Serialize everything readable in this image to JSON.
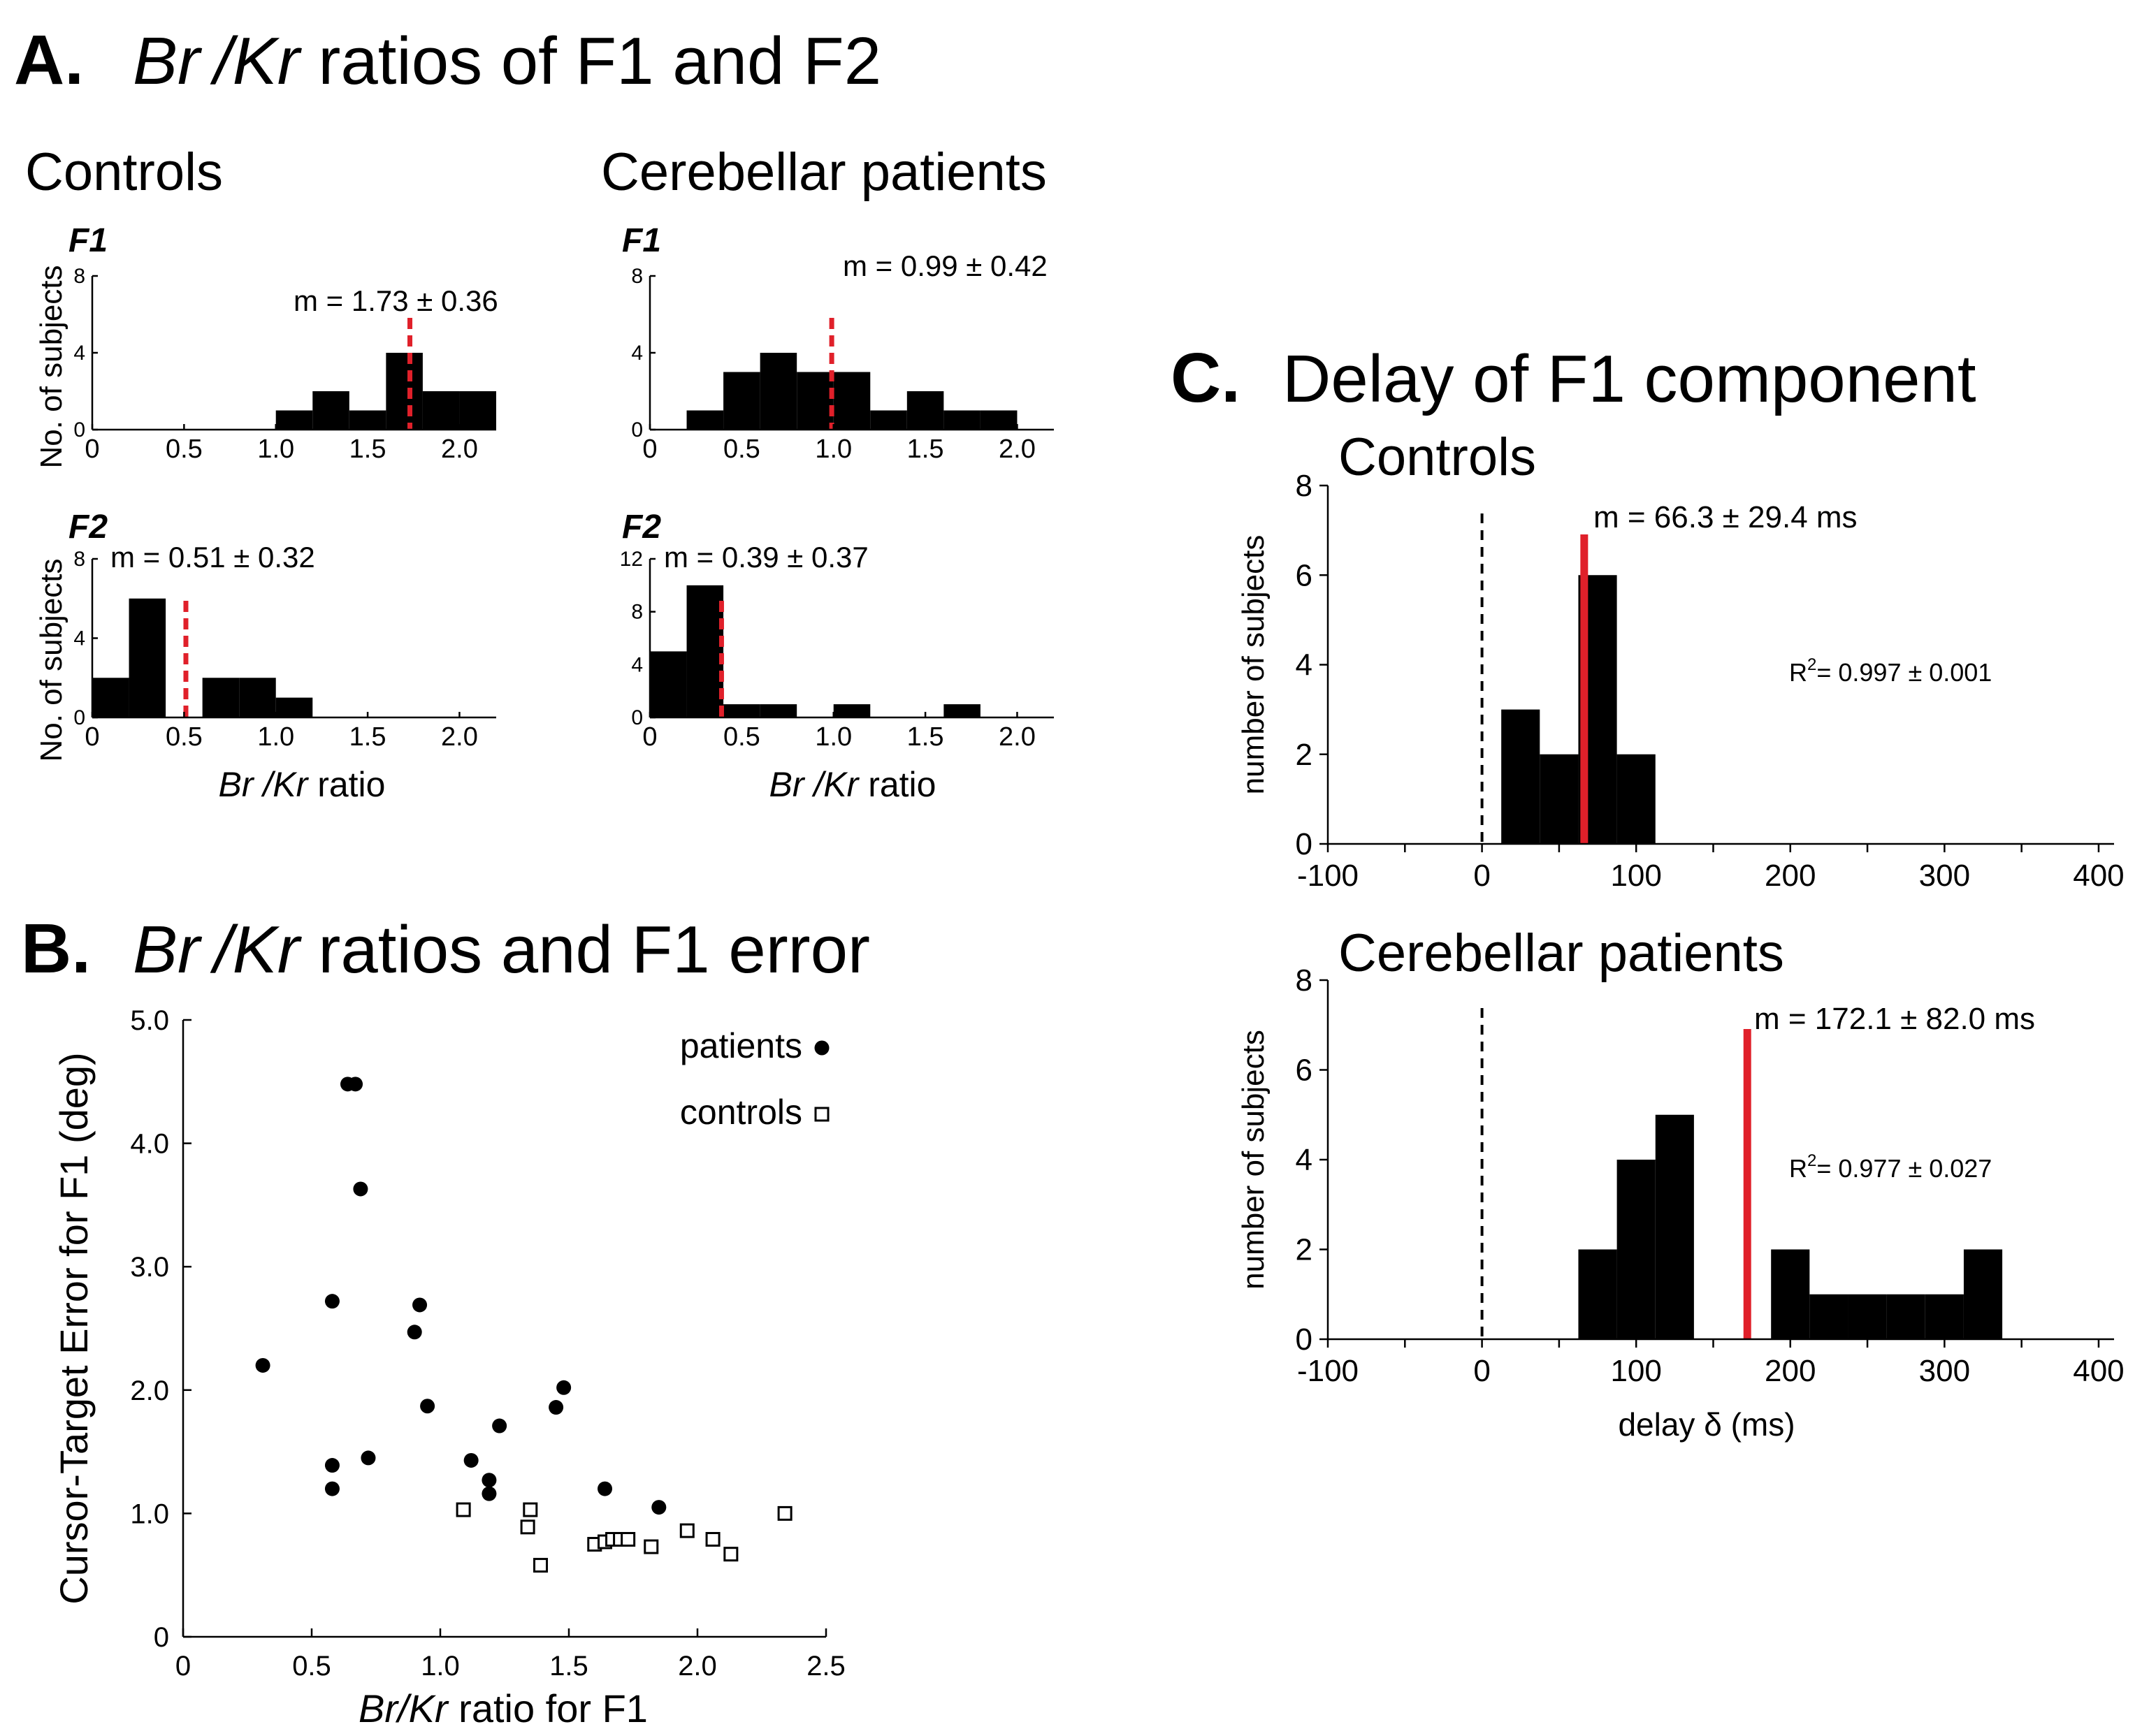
{
  "panel_a": {
    "letter": "A.",
    "title_italic_1": "Br",
    "title_italic_2": "/Kr",
    "title_rest": " ratios of F1 and F2",
    "group_controls": "Controls",
    "group_patients": "Cerebellar patients",
    "row_f1": "F1",
    "row_f2": "F2",
    "ylabel": "No. of subjects",
    "xlabel_italic_1": "Br",
    "xlabel_italic_2": " /Kr",
    "xlabel_rest": " ratio"
  },
  "panel_b": {
    "letter": "B.",
    "title_italic_1": "Br",
    "title_italic_2": "/Kr",
    "title_rest": " ratios and F1 error"
  },
  "panel_c": {
    "letter": "C.",
    "title": "Delay of F1 component"
  },
  "colors": {
    "bar": "#000000",
    "mean_line": "#e0202a",
    "zero_line": "#000000"
  },
  "chart_data": [
    {
      "id": "a_controls_f1",
      "type": "bar",
      "title": "F1",
      "bin_edges": [
        0,
        0.2,
        0.4,
        0.6,
        0.8,
        1.0,
        1.2,
        1.4,
        1.6,
        1.8,
        2.0,
        2.2
      ],
      "values": [
        0,
        0,
        0,
        0,
        0,
        1,
        2,
        1,
        4,
        2,
        2
      ],
      "xlim": [
        0,
        2.2
      ],
      "ylim": [
        0,
        8
      ],
      "xticks": [
        "0",
        "0.5",
        "1.0",
        "1.5",
        "2.0"
      ],
      "xtick_values": [
        0,
        0.5,
        1.0,
        1.5,
        2.0
      ],
      "yticks": [
        "0",
        "4",
        "8"
      ],
      "ytick_values": [
        0,
        4,
        8
      ],
      "mean": 1.73,
      "mean_label": "m = 1.73 ± 0.36",
      "mean_style": "dashed"
    },
    {
      "id": "a_patients_f1",
      "type": "bar",
      "title": "F1",
      "bin_edges": [
        0.2,
        0.4,
        0.6,
        0.8,
        1.0,
        1.2,
        1.4,
        1.6,
        1.8,
        2.0
      ],
      "values": [
        1,
        3,
        4,
        3,
        3,
        1,
        2,
        1,
        1
      ],
      "xlim": [
        0,
        2.2
      ],
      "ylim": [
        0,
        8
      ],
      "xticks": [
        "0",
        "0.5",
        "1.0",
        "1.5",
        "2.0"
      ],
      "xtick_values": [
        0,
        0.5,
        1.0,
        1.5,
        2.0
      ],
      "yticks": [
        "0",
        "4",
        "8"
      ],
      "ytick_values": [
        0,
        4,
        8
      ],
      "mean": 0.99,
      "mean_label": "m = 0.99 ± 0.42",
      "mean_style": "dashed"
    },
    {
      "id": "a_controls_f2",
      "type": "bar",
      "title": "F2",
      "bin_edges": [
        0,
        0.2,
        0.4,
        0.6,
        0.8,
        1.0,
        1.2
      ],
      "values": [
        2,
        6,
        0,
        2,
        2,
        1
      ],
      "xlim": [
        0,
        2.2
      ],
      "ylim": [
        0,
        8
      ],
      "xticks": [
        "0",
        "0.5",
        "1.0",
        "1.5",
        "2.0"
      ],
      "xtick_values": [
        0,
        0.5,
        1.0,
        1.5,
        2.0
      ],
      "yticks": [
        "0",
        "4",
        "8"
      ],
      "ytick_values": [
        0,
        4,
        8
      ],
      "mean": 0.51,
      "mean_label": "m = 0.51 ± 0.32",
      "mean_style": "dashed"
    },
    {
      "id": "a_patients_f2",
      "type": "bar",
      "title": "F2",
      "bin_edges": [
        0,
        0.2,
        0.4,
        0.6,
        0.8,
        1.0,
        1.2,
        1.4,
        1.6,
        1.8
      ],
      "values": [
        5,
        10,
        1,
        1,
        0,
        1,
        0,
        0,
        1
      ],
      "xlim": [
        0,
        2.2
      ],
      "ylim": [
        0,
        12
      ],
      "xticks": [
        "0",
        "0.5",
        "1.0",
        "1.5",
        "2.0"
      ],
      "xtick_values": [
        0,
        0.5,
        1.0,
        1.5,
        2.0
      ],
      "yticks": [
        "0",
        "4",
        "8",
        "12"
      ],
      "ytick_values": [
        0,
        4,
        8,
        12
      ],
      "mean": 0.39,
      "mean_label": "m = 0.39 ± 0.37",
      "mean_style": "dashed"
    },
    {
      "id": "b_scatter",
      "type": "scatter",
      "xlabel_italic": "Br/Kr",
      "xlabel_rest": " ratio for F1",
      "ylabel": "Cursor-Target Error for F1 (deg)",
      "xlim": [
        0,
        2.5
      ],
      "ylim": [
        0,
        5.0
      ],
      "xticks": [
        "0",
        "0.5",
        "1.0",
        "1.5",
        "2.0",
        "2.5"
      ],
      "xtick_values": [
        0,
        0.5,
        1.0,
        1.5,
        2.0,
        2.5
      ],
      "yticks": [
        "0",
        "1.0",
        "2.0",
        "3.0",
        "4.0",
        "5.0"
      ],
      "ytick_values": [
        0,
        1.0,
        2.0,
        3.0,
        4.0,
        5.0
      ],
      "legend_position": "top-right",
      "series": [
        {
          "name": "patients",
          "marker": "filled-circle",
          "points": [
            [
              0.31,
              2.2
            ],
            [
              0.58,
              1.2
            ],
            [
              0.58,
              1.39
            ],
            [
              0.58,
              2.72
            ],
            [
              0.64,
              4.48
            ],
            [
              0.67,
              4.48
            ],
            [
              0.69,
              3.63
            ],
            [
              0.72,
              1.45
            ],
            [
              0.9,
              2.47
            ],
            [
              0.92,
              2.69
            ],
            [
              0.95,
              1.87
            ],
            [
              1.12,
              1.43
            ],
            [
              1.19,
              1.27
            ],
            [
              1.19,
              1.16
            ],
            [
              1.23,
              1.71
            ],
            [
              1.45,
              1.86
            ],
            [
              1.48,
              2.02
            ],
            [
              1.64,
              1.2
            ],
            [
              1.85,
              1.05
            ]
          ]
        },
        {
          "name": "controls",
          "marker": "open-square",
          "points": [
            [
              1.09,
              1.03
            ],
            [
              1.34,
              0.89
            ],
            [
              1.35,
              1.03
            ],
            [
              1.39,
              0.58
            ],
            [
              1.6,
              0.75
            ],
            [
              1.64,
              0.77
            ],
            [
              1.67,
              0.79
            ],
            [
              1.7,
              0.79
            ],
            [
              1.73,
              0.79
            ],
            [
              1.82,
              0.73
            ],
            [
              1.96,
              0.86
            ],
            [
              2.06,
              0.79
            ],
            [
              2.13,
              0.67
            ],
            [
              2.34,
              1.0
            ]
          ]
        }
      ]
    },
    {
      "id": "c_controls",
      "type": "bar",
      "title": "Controls",
      "ylabel": "number of subjects",
      "bin_edges": [
        12.5,
        37.5,
        62.5,
        87.5,
        112.5
      ],
      "values": [
        3,
        2,
        6,
        2
      ],
      "xlim": [
        -100,
        410
      ],
      "ylim": [
        0,
        8
      ],
      "xticks": [
        "-100",
        "0",
        "100",
        "200",
        "300",
        "400"
      ],
      "xtick_values": [
        -100,
        0,
        100,
        200,
        300,
        400
      ],
      "yticks": [
        "0",
        "2",
        "4",
        "6",
        "8"
      ],
      "ytick_values": [
        0,
        2,
        4,
        6,
        8
      ],
      "mean": 66.3,
      "mean_label": "m = 66.3 ± 29.4 ms",
      "mean_style": "solid",
      "zero_line": 0,
      "r2_base": "R",
      "r2_exp": "2",
      "r2_value": "= 0.997 ± 0.001"
    },
    {
      "id": "c_patients",
      "type": "bar",
      "title": "Cerebellar patients",
      "ylabel": "number of subjects",
      "xlabel": "delay δ (ms)",
      "bin_edges": [
        62.5,
        87.5,
        112.5,
        137.5,
        162.5,
        187.5,
        212.5,
        237.5,
        262.5,
        287.5,
        312.5,
        337.5
      ],
      "values": [
        2,
        4,
        5,
        0,
        0,
        2,
        1,
        1,
        1,
        1,
        2
      ],
      "xlim": [
        -100,
        410
      ],
      "ylim": [
        0,
        8
      ],
      "xticks": [
        "-100",
        "0",
        "100",
        "200",
        "300",
        "400"
      ],
      "xtick_values": [
        -100,
        0,
        100,
        200,
        300,
        400
      ],
      "yticks": [
        "0",
        "2",
        "4",
        "6",
        "8"
      ],
      "ytick_values": [
        0,
        2,
        4,
        6,
        8
      ],
      "mean": 172.1,
      "mean_label": "m = 172.1 ± 82.0 ms",
      "mean_style": "solid",
      "zero_line": 0,
      "r2_base": "R",
      "r2_exp": "2",
      "r2_value": "= 0.977 ± 0.027"
    }
  ]
}
